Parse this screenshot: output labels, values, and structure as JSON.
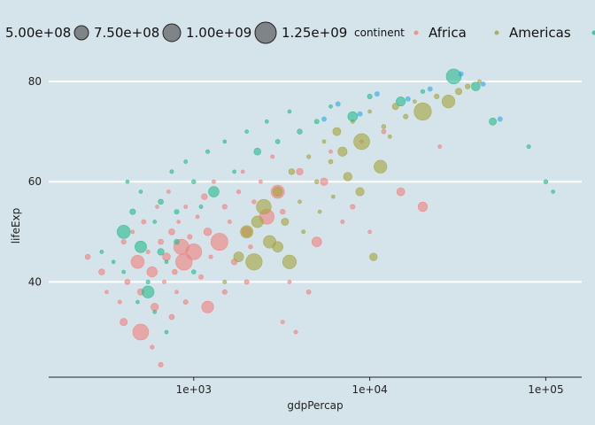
{
  "chart_data": {
    "type": "scatter",
    "title": "",
    "xlabel": "gdpPercap",
    "ylabel": "lifeExp",
    "x_scale": "log10",
    "xlim": [
      150,
      160000
    ],
    "ylim": [
      21,
      83
    ],
    "x_ticks": [
      1000,
      10000,
      100000
    ],
    "x_tick_labels": [
      "1e+03",
      "1e+04",
      "1e+05"
    ],
    "y_ticks": [
      40,
      60,
      80
    ],
    "y_tick_labels": [
      "40",
      "60",
      "80"
    ],
    "grid": true,
    "legend_position": "top",
    "size_legend": {
      "title": "",
      "entries": [
        {
          "label": "5.00e+08",
          "value": 500000000
        },
        {
          "label": "7.50e+08",
          "value": 750000000
        },
        {
          "label": "1.00e+09",
          "value": 1000000000
        },
        {
          "label": "1.25e+09",
          "value": 1250000000
        }
      ]
    },
    "color_legend": {
      "title": "continent",
      "entries": [
        {
          "label": "Africa",
          "color": "#f07f7a"
        },
        {
          "label": "Americas",
          "color": "#a3a43a"
        },
        {
          "label": "Asia",
          "color": "#27b98c"
        }
      ]
    },
    "series": [
      {
        "name": "Africa",
        "color": "#f07f7a",
        "points": [
          [
            250,
            45
          ],
          [
            300,
            42
          ],
          [
            320,
            38
          ],
          [
            380,
            36
          ],
          [
            400,
            48
          ],
          [
            420,
            40
          ],
          [
            450,
            50
          ],
          [
            480,
            44
          ],
          [
            500,
            38
          ],
          [
            520,
            52
          ],
          [
            550,
            46
          ],
          [
            580,
            42
          ],
          [
            600,
            35
          ],
          [
            620,
            55
          ],
          [
            650,
            48
          ],
          [
            680,
            40
          ],
          [
            700,
            45
          ],
          [
            720,
            58
          ],
          [
            750,
            50
          ],
          [
            780,
            42
          ],
          [
            800,
            38
          ],
          [
            820,
            52
          ],
          [
            850,
            47
          ],
          [
            880,
            44
          ],
          [
            900,
            55
          ],
          [
            950,
            49
          ],
          [
            1000,
            46
          ],
          [
            1050,
            53
          ],
          [
            1100,
            41
          ],
          [
            1150,
            57
          ],
          [
            1200,
            50
          ],
          [
            1250,
            45
          ],
          [
            1300,
            60
          ],
          [
            1400,
            48
          ],
          [
            1500,
            55
          ],
          [
            1600,
            52
          ],
          [
            1700,
            44
          ],
          [
            1800,
            58
          ],
          [
            1900,
            62
          ],
          [
            2000,
            50
          ],
          [
            2100,
            47
          ],
          [
            2200,
            56
          ],
          [
            2400,
            60
          ],
          [
            2600,
            53
          ],
          [
            2800,
            65
          ],
          [
            3000,
            58
          ],
          [
            3200,
            54
          ],
          [
            3500,
            40
          ],
          [
            4000,
            62
          ],
          [
            4500,
            38
          ],
          [
            5000,
            48
          ],
          [
            5500,
            60
          ],
          [
            6000,
            66
          ],
          [
            7000,
            52
          ],
          [
            8000,
            55
          ],
          [
            9000,
            68
          ],
          [
            10000,
            50
          ],
          [
            12000,
            70
          ],
          [
            15000,
            58
          ],
          [
            400,
            32
          ],
          [
            500,
            30
          ],
          [
            580,
            27
          ],
          [
            650,
            23.5
          ],
          [
            750,
            33
          ],
          [
            900,
            36
          ],
          [
            1200,
            35
          ],
          [
            1500,
            38
          ],
          [
            2000,
            40
          ],
          [
            3800,
            30
          ],
          [
            3200,
            32
          ],
          [
            20000,
            55
          ],
          [
            25000,
            67
          ]
        ]
      },
      {
        "name": "Americas",
        "color": "#a3a43a",
        "points": [
          [
            1500,
            40
          ],
          [
            1800,
            45
          ],
          [
            2000,
            50
          ],
          [
            2200,
            44
          ],
          [
            2500,
            55
          ],
          [
            2700,
            48
          ],
          [
            3000,
            58
          ],
          [
            3300,
            52
          ],
          [
            3600,
            62
          ],
          [
            4000,
            56
          ],
          [
            4500,
            65
          ],
          [
            5000,
            60
          ],
          [
            5500,
            68
          ],
          [
            6000,
            64
          ],
          [
            6500,
            70
          ],
          [
            7000,
            66
          ],
          [
            8000,
            72
          ],
          [
            9000,
            68
          ],
          [
            10000,
            74
          ],
          [
            12000,
            71
          ],
          [
            14000,
            75
          ],
          [
            16000,
            73
          ],
          [
            18000,
            76
          ],
          [
            20000,
            74
          ],
          [
            24000,
            77
          ],
          [
            28000,
            76
          ],
          [
            32000,
            78
          ],
          [
            36000,
            79
          ],
          [
            42000,
            80
          ],
          [
            3000,
            47
          ],
          [
            3500,
            44
          ],
          [
            4200,
            50
          ],
          [
            5200,
            54
          ],
          [
            6200,
            57
          ],
          [
            7500,
            61
          ],
          [
            8800,
            58
          ],
          [
            10500,
            45
          ],
          [
            11500,
            63
          ],
          [
            13000,
            69
          ],
          [
            2300,
            52
          ]
        ]
      },
      {
        "name": "Asia",
        "color": "#27b98c",
        "points": [
          [
            300,
            46
          ],
          [
            350,
            44
          ],
          [
            400,
            42
          ],
          [
            420,
            60
          ],
          [
            450,
            54
          ],
          [
            500,
            47
          ],
          [
            550,
            38
          ],
          [
            600,
            52
          ],
          [
            650,
            56
          ],
          [
            700,
            44
          ],
          [
            750,
            62
          ],
          [
            800,
            48
          ],
          [
            900,
            64
          ],
          [
            1000,
            60
          ],
          [
            1100,
            55
          ],
          [
            1200,
            66
          ],
          [
            1300,
            58
          ],
          [
            1500,
            68
          ],
          [
            1700,
            62
          ],
          [
            2000,
            70
          ],
          [
            2300,
            66
          ],
          [
            2600,
            72
          ],
          [
            3000,
            68
          ],
          [
            3500,
            74
          ],
          [
            4000,
            70
          ],
          [
            5000,
            72
          ],
          [
            6000,
            75
          ],
          [
            8000,
            73
          ],
          [
            10000,
            77
          ],
          [
            15000,
            76
          ],
          [
            20000,
            78
          ],
          [
            30000,
            81
          ],
          [
            40000,
            79
          ],
          [
            50000,
            72
          ],
          [
            80000,
            67
          ],
          [
            100000,
            60
          ],
          [
            110000,
            58
          ],
          [
            400,
            50
          ],
          [
            500,
            58
          ],
          [
            600,
            34
          ],
          [
            700,
            30
          ],
          [
            550,
            40
          ],
          [
            480,
            36
          ],
          [
            650,
            46
          ],
          [
            800,
            54
          ],
          [
            1000,
            42
          ]
        ]
      }
    ],
    "extra_series_colors": [
      "#27a9e1",
      "#b180e0"
    ]
  }
}
